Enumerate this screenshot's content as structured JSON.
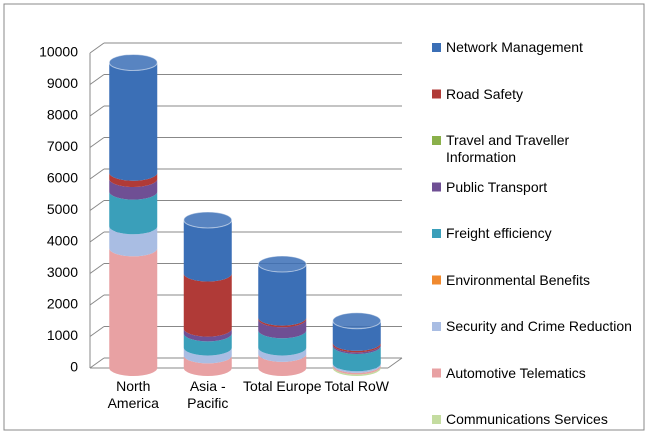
{
  "chart_data": {
    "type": "stacked_cylinder",
    "categories": [
      "North America",
      "Asia - Pacific",
      "Total Europe",
      "Total RoW"
    ],
    "series": [
      {
        "name": "Communications Services",
        "color": "#c4dca0",
        "values": [
          0,
          0,
          0,
          50
        ]
      },
      {
        "name": "Automotive Telematics",
        "color": "#e8a1a3",
        "values": [
          3800,
          400,
          450,
          50
        ]
      },
      {
        "name": "Security and Crime Reduction",
        "color": "#a9bde3",
        "values": [
          700,
          250,
          200,
          50
        ]
      },
      {
        "name": "Environmental Benefits",
        "color": "#f0892e",
        "values": [
          0,
          0,
          0,
          0
        ]
      },
      {
        "name": "Freight efficiency",
        "color": "#3a9fba",
        "values": [
          1100,
          450,
          550,
          550
        ]
      },
      {
        "name": "Public Transport",
        "color": "#6f4f94",
        "values": [
          400,
          150,
          350,
          50
        ]
      },
      {
        "name": "Travel and Traveller Information",
        "color": "#8ab04a",
        "values": [
          0,
          0,
          0,
          0
        ]
      },
      {
        "name": "Road Safety",
        "color": "#b03a37",
        "values": [
          200,
          1750,
          50,
          50
        ]
      },
      {
        "name": "Network Management",
        "color": "#3b6fb6",
        "values": [
          3500,
          1700,
          1700,
          700
        ]
      }
    ],
    "ylim": [
      0,
      10000
    ],
    "yticks": [
      0,
      1000,
      2000,
      3000,
      4000,
      5000,
      6000,
      7000,
      8000,
      9000,
      10000
    ],
    "grid": true,
    "legend": "right"
  }
}
